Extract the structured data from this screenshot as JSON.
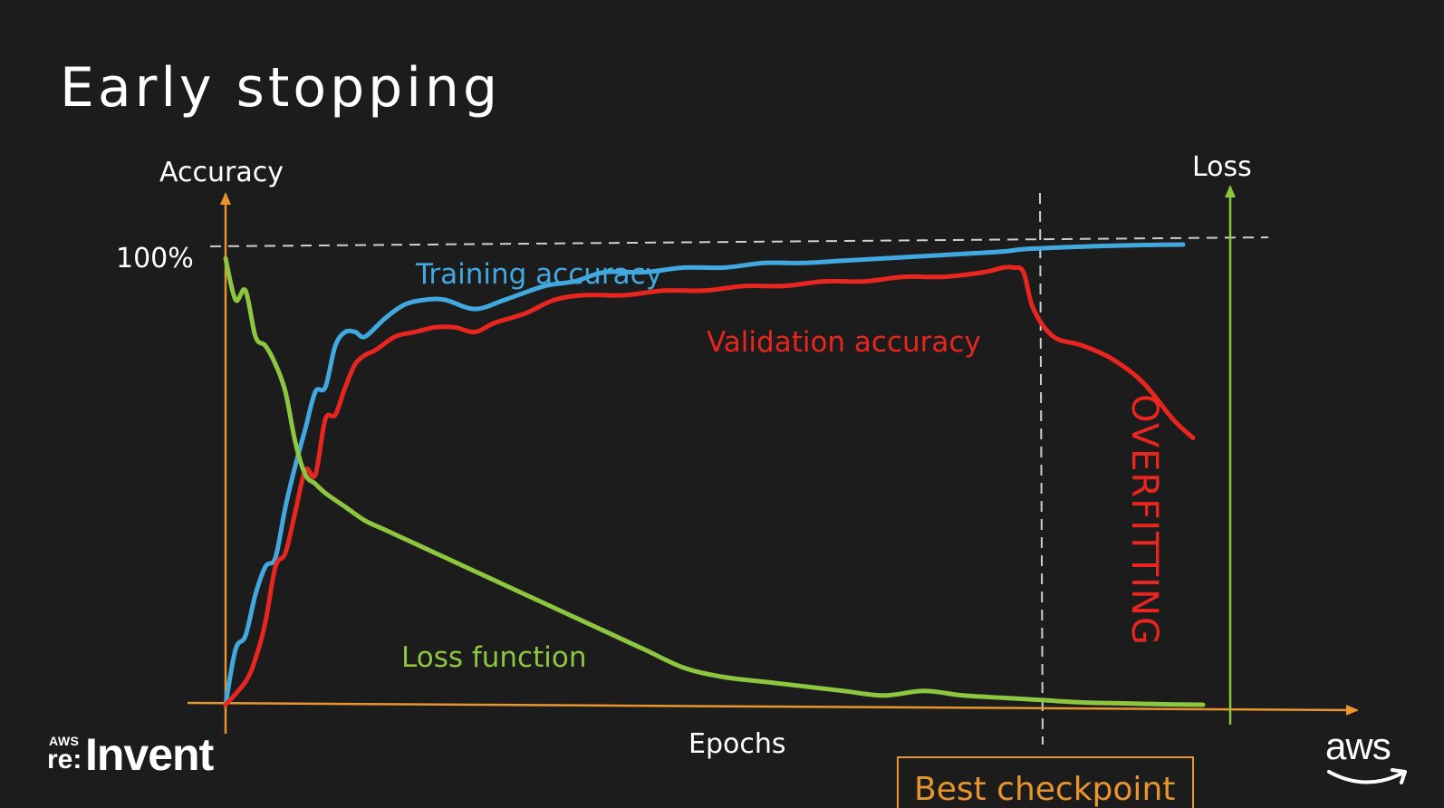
{
  "slide": {
    "title": "Early stopping",
    "logo_left_top": "AWS",
    "logo_left_re": "re:",
    "logo_left_main": "Invent",
    "logo_right": "aws"
  },
  "colors": {
    "background": "#1c1c1c",
    "axis": "#e8952f",
    "training": "#41a9e0",
    "validation": "#e8261f",
    "loss": "#8dc63f",
    "guide": "#cfcfcf",
    "text": "#ffffff"
  },
  "chart_data": {
    "type": "line",
    "ylabel": "Accuracy",
    "xlabel": "Epochs",
    "ylabel_right": "Loss",
    "ytick": "100%",
    "annotations": {
      "overfitting": "OVERFITTING",
      "best_checkpoint": "Best checkpoint"
    },
    "xlim": [
      0,
      100
    ],
    "ylim": [
      0,
      100
    ],
    "best_checkpoint_x": 79,
    "reference_line_y": 100,
    "series": [
      {
        "name": "Training accuracy",
        "color": "#41a9e0",
        "x": [
          0,
          1,
          2,
          3,
          4,
          5,
          6,
          7,
          8,
          9,
          10,
          11,
          12,
          13,
          14,
          16,
          18,
          20,
          22,
          25,
          28,
          32,
          35,
          38,
          42,
          46,
          50,
          54,
          58,
          62,
          66,
          70,
          74,
          78,
          80,
          84,
          88,
          92,
          96
        ],
        "y": [
          0,
          12,
          15,
          24,
          30,
          32,
          43,
          52,
          60,
          68,
          69,
          78,
          81,
          81,
          80,
          84,
          87,
          88,
          88,
          86,
          88,
          91,
          92,
          94,
          94,
          95,
          95,
          96,
          96,
          96.5,
          97,
          97.5,
          98,
          98.5,
          99,
          99.4,
          99.7,
          99.9,
          100
        ]
      },
      {
        "name": "Validation accuracy",
        "color": "#e8261f",
        "x": [
          0,
          2,
          3,
          4,
          5,
          6,
          7,
          8,
          9,
          10,
          11,
          12,
          13,
          14,
          15,
          17,
          19,
          21,
          23,
          25,
          27,
          30,
          33,
          36,
          40,
          44,
          48,
          52,
          56,
          60,
          64,
          68,
          72,
          76,
          78,
          79,
          80,
          81,
          83,
          86,
          89,
          92,
          95,
          97
        ],
        "y": [
          0,
          5,
          10,
          18,
          30,
          33,
          42,
          51,
          50,
          62,
          63,
          69,
          74,
          76,
          77,
          80,
          81,
          82,
          82,
          81,
          83,
          85,
          88,
          89,
          89,
          90,
          90,
          91,
          91,
          92,
          92,
          93,
          93,
          94,
          95,
          95,
          94,
          86,
          80,
          78,
          75,
          70,
          62,
          58
        ]
      },
      {
        "name": "Loss function",
        "color": "#8dc63f",
        "x": [
          0,
          1,
          2,
          3,
          4,
          5,
          6,
          7,
          8,
          9,
          10,
          12,
          14,
          16,
          18,
          20,
          22,
          24,
          27,
          30,
          34,
          38,
          42,
          46,
          50,
          54,
          58,
          62,
          66,
          70,
          74,
          78,
          82,
          86,
          90,
          94,
          98
        ],
        "y": [
          97,
          88,
          90,
          80,
          78,
          74,
          68,
          57,
          50,
          48,
          46,
          43,
          40,
          38,
          36,
          34,
          32,
          30,
          27,
          24,
          20,
          16,
          12,
          8,
          6,
          5,
          4,
          3,
          2,
          3,
          2,
          1.5,
          1,
          0.5,
          0.3,
          0.1,
          0
        ]
      }
    ]
  }
}
